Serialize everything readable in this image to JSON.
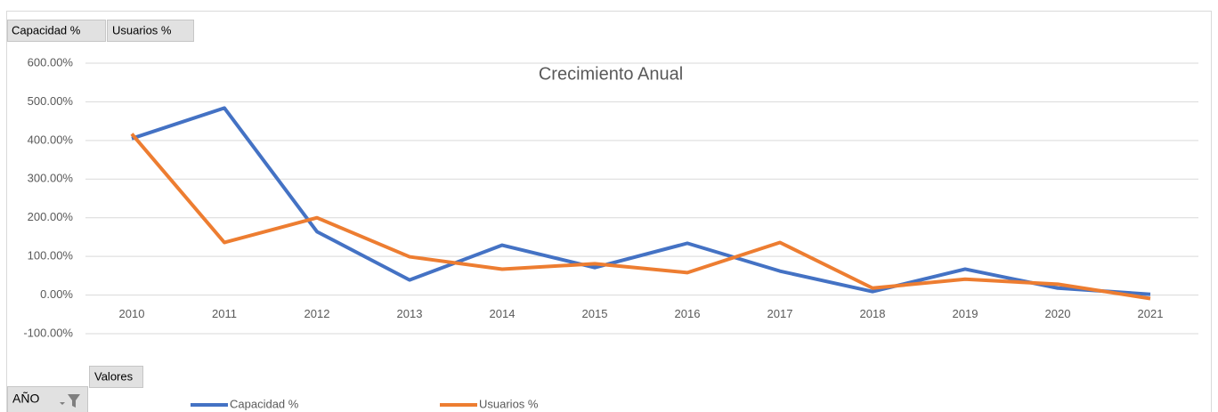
{
  "chart_data": {
    "type": "line",
    "title": "Crecimiento Anual",
    "field_buttons": [
      "Capacidad %",
      "Usuarios %"
    ],
    "values_button": "Valores",
    "axis_field": "AÑO",
    "categories": [
      "2010",
      "2011",
      "2012",
      "2013",
      "2014",
      "2015",
      "2016",
      "2017",
      "2018",
      "2019",
      "2020",
      "2021"
    ],
    "series": [
      {
        "name": "Capacidad %",
        "color": "#4472c4",
        "values": [
          405,
          484,
          164,
          39,
          129,
          71,
          134,
          62,
          9,
          67,
          18,
          2
        ]
      },
      {
        "name": "Usuarios %",
        "color": "#ed7d31",
        "values": [
          417,
          136,
          200,
          99,
          67,
          81,
          58,
          136,
          18,
          41,
          28,
          -9
        ]
      }
    ],
    "ylim": [
      -100,
      600
    ],
    "yticks": [
      {
        "value": -100,
        "label": "-100.00%"
      },
      {
        "value": 0,
        "label": "0.00%"
      },
      {
        "value": 100,
        "label": "100.00%"
      },
      {
        "value": 200,
        "label": "200.00%"
      },
      {
        "value": 300,
        "label": "300.00%"
      },
      {
        "value": 400,
        "label": "400.00%"
      },
      {
        "value": 500,
        "label": "500.00%"
      },
      {
        "value": 600,
        "label": "600.00%"
      }
    ],
    "grid": true,
    "legend": "bottom"
  }
}
